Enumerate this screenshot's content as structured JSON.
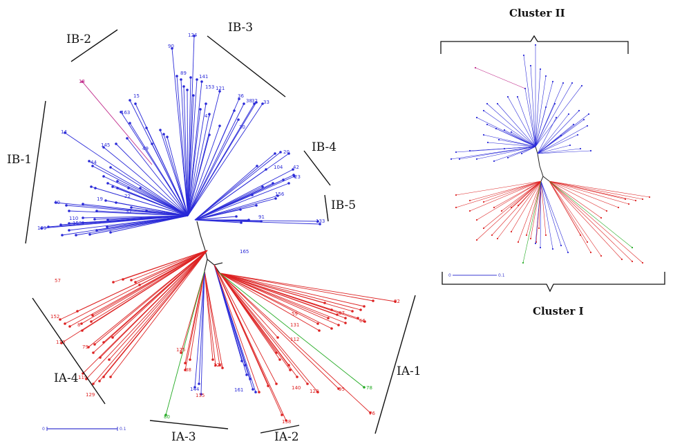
{
  "colors": {
    "cluster_IA": "#dd2222",
    "cluster_IB": "#2a2ad8",
    "other": "#22aa22",
    "backbone": "#222222"
  },
  "main_tree": {
    "group_labels": {
      "ib1": "IB-1",
      "ib2": "IB-2",
      "ib3": "IB-3",
      "ib4": "IB-4",
      "ib5": "IB-5",
      "ia1": "IA-1",
      "ia2": "IA-2",
      "ia3": "IA-3",
      "ia4": "IA-4"
    },
    "scale_bar": {
      "start_label": "0",
      "end_label": "0.1"
    },
    "tip_labels": {
      "blue": [
        "124",
        "90",
        "89",
        "141",
        "15",
        "163",
        "153",
        "121",
        "36",
        "38",
        "32",
        "33",
        "47",
        "30",
        "14",
        "145",
        "49",
        "44",
        "20",
        "104",
        "42",
        "23",
        "156",
        "40",
        "19",
        "22",
        "37",
        "110",
        "139",
        "153",
        "91",
        "133",
        "165",
        "161",
        "144"
      ],
      "red": [
        "57",
        "152",
        "8",
        "110",
        "79",
        "119",
        "129",
        "125",
        "88",
        "135",
        "128",
        "82",
        "59",
        "87",
        "66",
        "131",
        "112",
        "140",
        "128",
        "95",
        "138",
        "76"
      ],
      "green": [
        "80",
        "78"
      ],
      "magenta": [
        "13"
      ]
    }
  },
  "inset_tree": {
    "cluster_top": "Cluster II",
    "cluster_bottom": "Cluster I",
    "scale_bar": {
      "start_label": "0",
      "end_label": "0.1"
    }
  }
}
